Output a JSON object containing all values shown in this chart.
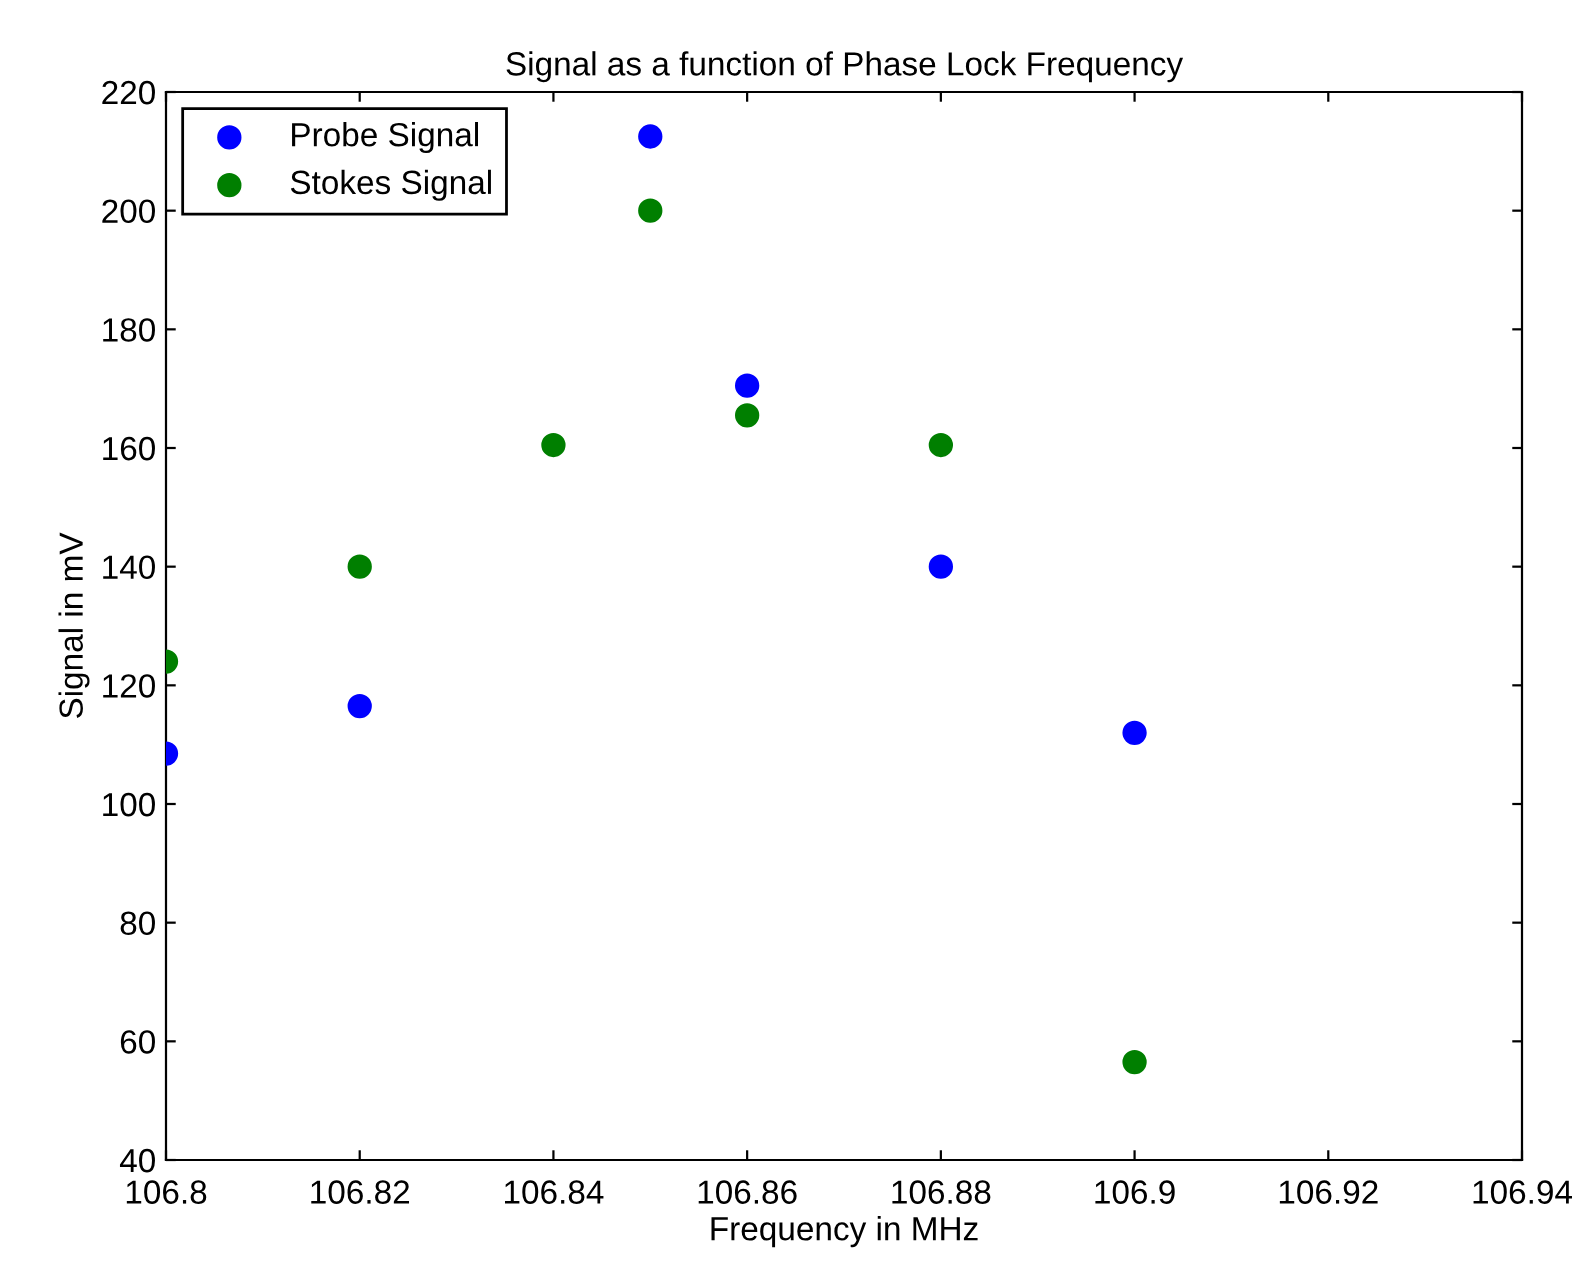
{
  "chart_data": {
    "type": "scatter",
    "title": "Signal as a function of Phase Lock Frequency",
    "xlabel": "Frequency in MHz",
    "ylabel": "Signal in mV",
    "xlim": [
      106.8,
      106.94
    ],
    "xticks": [
      106.8,
      106.82,
      106.84,
      106.86,
      106.88,
      106.9,
      106.92,
      106.94
    ],
    "ylim": [
      40,
      220
    ],
    "yticks": [
      40,
      60,
      80,
      100,
      120,
      140,
      160,
      180,
      200,
      220
    ],
    "grid": false,
    "legend": "top left",
    "marker": "circle",
    "series": [
      {
        "name": "Probe Signal",
        "color": "#0000ff",
        "x": [
          106.8,
          106.82,
          106.85,
          106.86,
          106.88,
          106.9
        ],
        "values": [
          108.5,
          116.5,
          212.5,
          170.5,
          140,
          112
        ]
      },
      {
        "name": "Stokes Signal",
        "color": "#007f00",
        "x": [
          106.8,
          106.82,
          106.84,
          106.85,
          106.86,
          106.88,
          106.9
        ],
        "values": [
          124,
          140,
          160.5,
          200,
          165.5,
          160.5,
          56.5
        ]
      }
    ]
  }
}
